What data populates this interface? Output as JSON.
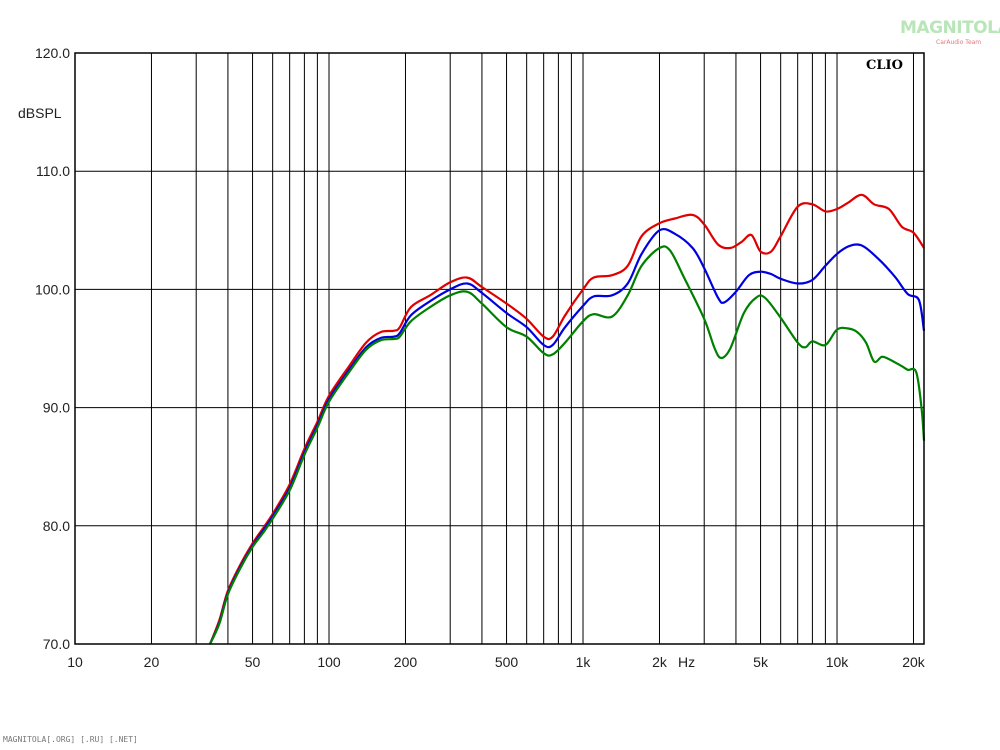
{
  "chart_data": {
    "type": "line",
    "xscale": "log",
    "xlim": [
      10,
      22000
    ],
    "ylim": [
      70,
      120
    ],
    "grid": true,
    "ylabel": "dBSPL",
    "xunit": "Hz",
    "brand": "CLIO",
    "y_ticks": [
      "120.0",
      "110.0",
      "100.0",
      "90.0",
      "80.0",
      "70.0"
    ],
    "y_tick_values": [
      120,
      110,
      100,
      90,
      80,
      70
    ],
    "x_ticks": [
      "10",
      "20",
      "50",
      "100",
      "200",
      "500",
      "1k",
      "2k",
      "5k",
      "10k",
      "20k"
    ],
    "x_tick_values": [
      10,
      20,
      50,
      100,
      200,
      500,
      1000,
      2000,
      5000,
      10000,
      20000
    ],
    "series": [
      {
        "color": "#e00000",
        "points": [
          [
            34,
            69.5
          ],
          [
            37,
            72
          ],
          [
            40,
            74.5
          ],
          [
            45,
            76.8
          ],
          [
            50,
            78.5
          ],
          [
            55,
            79.8
          ],
          [
            60,
            81
          ],
          [
            70,
            83.5
          ],
          [
            80,
            86.5
          ],
          [
            90,
            88.8
          ],
          [
            100,
            91
          ],
          [
            120,
            93.5
          ],
          [
            140,
            95.5
          ],
          [
            160,
            96.4
          ],
          [
            180,
            96.5
          ],
          [
            190,
            96.8
          ],
          [
            210,
            98.5
          ],
          [
            250,
            99.5
          ],
          [
            300,
            100.6
          ],
          [
            350,
            101
          ],
          [
            400,
            100.2
          ],
          [
            500,
            98.8
          ],
          [
            600,
            97.5
          ],
          [
            700,
            96
          ],
          [
            760,
            96
          ],
          [
            850,
            97.8
          ],
          [
            1000,
            100
          ],
          [
            1100,
            101
          ],
          [
            1300,
            101.2
          ],
          [
            1500,
            102
          ],
          [
            1700,
            104.5
          ],
          [
            2000,
            105.6
          ],
          [
            2300,
            106
          ],
          [
            2700,
            106.3
          ],
          [
            3000,
            105.5
          ],
          [
            3400,
            103.8
          ],
          [
            3800,
            103.5
          ],
          [
            4200,
            104
          ],
          [
            4600,
            104.6
          ],
          [
            5000,
            103.2
          ],
          [
            5500,
            103.2
          ],
          [
            6000,
            104.5
          ],
          [
            7000,
            107
          ],
          [
            8000,
            107.2
          ],
          [
            9000,
            106.6
          ],
          [
            10000,
            106.8
          ],
          [
            11000,
            107.3
          ],
          [
            12500,
            108
          ],
          [
            14000,
            107.2
          ],
          [
            16000,
            106.8
          ],
          [
            18000,
            105.3
          ],
          [
            20000,
            104.8
          ],
          [
            22000,
            103.5
          ]
        ]
      },
      {
        "color": "#0000e0",
        "points": [
          [
            34,
            69.3
          ],
          [
            37,
            71.8
          ],
          [
            40,
            74.3
          ],
          [
            45,
            76.6
          ],
          [
            50,
            78.3
          ],
          [
            55,
            79.6
          ],
          [
            60,
            80.8
          ],
          [
            70,
            83.2
          ],
          [
            80,
            86.2
          ],
          [
            90,
            88.5
          ],
          [
            100,
            90.7
          ],
          [
            120,
            93.2
          ],
          [
            140,
            95.1
          ],
          [
            160,
            95.9
          ],
          [
            180,
            96
          ],
          [
            190,
            96.3
          ],
          [
            210,
            97.8
          ],
          [
            250,
            99
          ],
          [
            300,
            100
          ],
          [
            350,
            100.5
          ],
          [
            400,
            99.7
          ],
          [
            500,
            98
          ],
          [
            600,
            96.8
          ],
          [
            700,
            95.3
          ],
          [
            760,
            95.3
          ],
          [
            850,
            96.8
          ],
          [
            1000,
            98.6
          ],
          [
            1100,
            99.4
          ],
          [
            1300,
            99.5
          ],
          [
            1500,
            100.5
          ],
          [
            1700,
            103
          ],
          [
            2000,
            105
          ],
          [
            2300,
            104.7
          ],
          [
            2700,
            103.5
          ],
          [
            3000,
            101.8
          ],
          [
            3400,
            99.3
          ],
          [
            3600,
            98.9
          ],
          [
            4000,
            99.8
          ],
          [
            4500,
            101.2
          ],
          [
            5000,
            101.5
          ],
          [
            5500,
            101.3
          ],
          [
            6000,
            100.9
          ],
          [
            7000,
            100.5
          ],
          [
            8000,
            100.8
          ],
          [
            9000,
            102
          ],
          [
            10000,
            103
          ],
          [
            11000,
            103.6
          ],
          [
            12000,
            103.8
          ],
          [
            13000,
            103.5
          ],
          [
            15000,
            102.3
          ],
          [
            17000,
            101
          ],
          [
            19000,
            99.6
          ],
          [
            21000,
            99.1
          ],
          [
            22000,
            96.5
          ]
        ]
      },
      {
        "color": "#008000",
        "points": [
          [
            34,
            69.2
          ],
          [
            37,
            71.7
          ],
          [
            40,
            74.2
          ],
          [
            45,
            76.5
          ],
          [
            50,
            78.2
          ],
          [
            55,
            79.4
          ],
          [
            60,
            80.6
          ],
          [
            70,
            83
          ],
          [
            80,
            86
          ],
          [
            90,
            88.3
          ],
          [
            100,
            90.5
          ],
          [
            120,
            93
          ],
          [
            140,
            94.9
          ],
          [
            160,
            95.7
          ],
          [
            180,
            95.8
          ],
          [
            190,
            96
          ],
          [
            210,
            97.3
          ],
          [
            250,
            98.5
          ],
          [
            300,
            99.5
          ],
          [
            350,
            99.8
          ],
          [
            400,
            98.8
          ],
          [
            500,
            96.8
          ],
          [
            600,
            96
          ],
          [
            700,
            94.6
          ],
          [
            760,
            94.5
          ],
          [
            850,
            95.5
          ],
          [
            1000,
            97.3
          ],
          [
            1100,
            97.9
          ],
          [
            1300,
            97.7
          ],
          [
            1500,
            99.5
          ],
          [
            1700,
            102
          ],
          [
            2000,
            103.5
          ],
          [
            2200,
            103.3
          ],
          [
            2500,
            101
          ],
          [
            3000,
            97.5
          ],
          [
            3300,
            95
          ],
          [
            3500,
            94.2
          ],
          [
            3800,
            95
          ],
          [
            4300,
            98
          ],
          [
            4800,
            99.3
          ],
          [
            5200,
            99.3
          ],
          [
            6000,
            97.6
          ],
          [
            7000,
            95.5
          ],
          [
            7500,
            95.1
          ],
          [
            8000,
            95.6
          ],
          [
            9000,
            95.3
          ],
          [
            10000,
            96.6
          ],
          [
            11000,
            96.7
          ],
          [
            12000,
            96.4
          ],
          [
            13000,
            95.5
          ],
          [
            14000,
            93.9
          ],
          [
            15000,
            94.3
          ],
          [
            16000,
            94.1
          ],
          [
            18000,
            93.5
          ],
          [
            19000,
            93.2
          ],
          [
            20500,
            93
          ],
          [
            21500,
            90
          ],
          [
            22000,
            87.2
          ]
        ]
      }
    ]
  },
  "watermark": {
    "text": "MAGNITOLA",
    "sub": "CarAudio Team"
  },
  "footer": "MAGNITOLA[.ORG] [.RU] [.NET]"
}
